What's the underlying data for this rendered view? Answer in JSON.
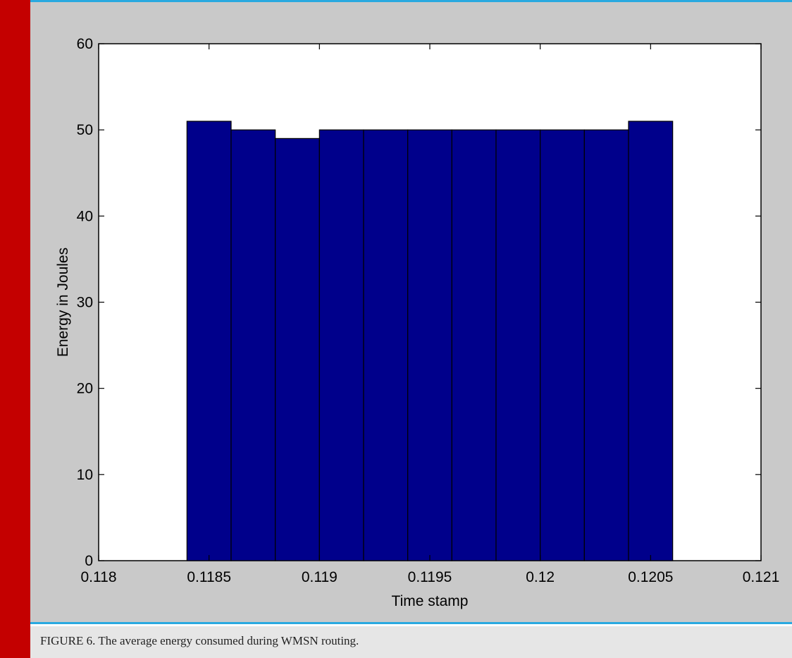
{
  "colors": {
    "left_bar": "#c40000",
    "panel_bg": "#c9c9c9",
    "panel_border": "#29a9e0",
    "plot_bg": "#ffffff",
    "bar_fill": "#00008b",
    "bar_edge": "#000000",
    "caption_bg": "#e6e6e6"
  },
  "caption": "FIGURE 6. The average energy consumed during WMSN routing.",
  "chart_data": {
    "type": "bar",
    "title": "",
    "xlabel": "Time stamp",
    "ylabel": "Energy in Joules",
    "xlim": [
      0.118,
      0.121
    ],
    "ylim": [
      0,
      60
    ],
    "xticks": [
      0.118,
      0.1185,
      0.119,
      0.1195,
      0.12,
      0.1205,
      0.121
    ],
    "xtick_labels": [
      "0.118",
      "0.1185",
      "0.119",
      "0.1195",
      "0.12",
      "0.1205",
      "0.121"
    ],
    "yticks": [
      0,
      10,
      20,
      30,
      40,
      50,
      60
    ],
    "ytick_labels": [
      "0",
      "10",
      "20",
      "30",
      "40",
      "50",
      "60"
    ],
    "bin_edges": [
      0.1184,
      0.1186,
      0.1188,
      0.119,
      0.1192,
      0.1194,
      0.1196,
      0.1198,
      0.12,
      0.1202,
      0.1204,
      0.1206
    ],
    "values": [
      51,
      50,
      49,
      50,
      50,
      50,
      50,
      50,
      50,
      50,
      51
    ],
    "grid": false,
    "legend": false
  }
}
